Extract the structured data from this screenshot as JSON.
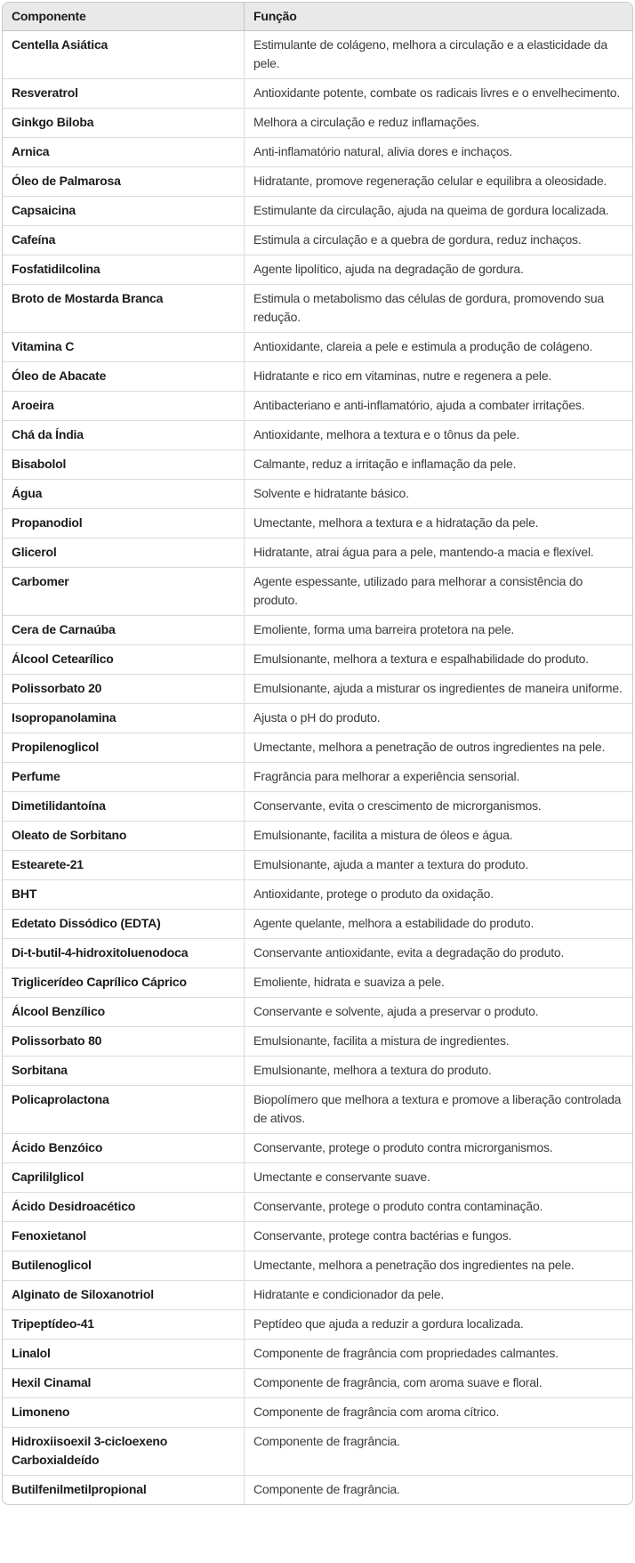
{
  "colors": {
    "header_bg": "#e9e9e9",
    "border_outer": "#c9c9c9",
    "border_header": "#c6c6c6",
    "border_row": "#dbdbdb",
    "text_primary": "#1b1b1b",
    "text_secondary": "#3a3a3a"
  },
  "table": {
    "columns": [
      {
        "label": "Componente"
      },
      {
        "label": "Função"
      }
    ],
    "rows": [
      {
        "componente": "Centella Asiática",
        "funcao": "Estimulante de colágeno, melhora a circulação e a elasticidade da pele."
      },
      {
        "componente": "Resveratrol",
        "funcao": "Antioxidante potente, combate os radicais livres e o envelhecimento."
      },
      {
        "componente": "Ginkgo Biloba",
        "funcao": "Melhora a circulação e reduz inflamações."
      },
      {
        "componente": "Arnica",
        "funcao": "Anti-inflamatório natural, alivia dores e inchaços."
      },
      {
        "componente": "Óleo de Palmarosa",
        "funcao": "Hidratante, promove regeneração celular e equilibra a oleosidade."
      },
      {
        "componente": "Capsaicina",
        "funcao": "Estimulante da circulação, ajuda na queima de gordura localizada."
      },
      {
        "componente": "Cafeína",
        "funcao": "Estimula a circulação e a quebra de gordura, reduz inchaços."
      },
      {
        "componente": "Fosfatidilcolina",
        "funcao": "Agente lipolítico, ajuda na degradação de gordura."
      },
      {
        "componente": "Broto de Mostarda Branca",
        "funcao": "Estimula o metabolismo das células de gordura, promovendo sua redução."
      },
      {
        "componente": "Vitamina C",
        "funcao": "Antioxidante, clareia a pele e estimula a produção de colágeno."
      },
      {
        "componente": "Óleo de Abacate",
        "funcao": "Hidratante e rico em vitaminas, nutre e regenera a pele."
      },
      {
        "componente": "Aroeira",
        "funcao": "Antibacteriano e anti-inflamatório, ajuda a combater irritações."
      },
      {
        "componente": "Chá da Índia",
        "funcao": "Antioxidante, melhora a textura e o tônus da pele."
      },
      {
        "componente": "Bisabolol",
        "funcao": "Calmante, reduz a irritação e inflamação da pele."
      },
      {
        "componente": "Água",
        "funcao": "Solvente e hidratante básico."
      },
      {
        "componente": "Propanodiol",
        "funcao": "Umectante, melhora a textura e a hidratação da pele."
      },
      {
        "componente": "Glicerol",
        "funcao": "Hidratante, atrai água para a pele, mantendo-a macia e flexível."
      },
      {
        "componente": "Carbomer",
        "funcao": "Agente espessante, utilizado para melhorar a consistência do produto."
      },
      {
        "componente": "Cera de Carnaúba",
        "funcao": "Emoliente, forma uma barreira protetora na pele."
      },
      {
        "componente": "Álcool Cetearílico",
        "funcao": "Emulsionante, melhora a textura e espalhabilidade do produto."
      },
      {
        "componente": "Polissorbato 20",
        "funcao": "Emulsionante, ajuda a misturar os ingredientes de maneira uniforme."
      },
      {
        "componente": "Isopropanolamina",
        "funcao": "Ajusta o pH do produto."
      },
      {
        "componente": "Propilenoglicol",
        "funcao": "Umectante, melhora a penetração de outros ingredientes na pele."
      },
      {
        "componente": "Perfume",
        "funcao": "Fragrância para melhorar a experiência sensorial."
      },
      {
        "componente": "Dimetilidantoína",
        "funcao": "Conservante, evita o crescimento de microrganismos."
      },
      {
        "componente": "Oleato de Sorbitano",
        "funcao": "Emulsionante, facilita a mistura de óleos e água."
      },
      {
        "componente": "Estearete-21",
        "funcao": "Emulsionante, ajuda a manter a textura do produto."
      },
      {
        "componente": "BHT",
        "funcao": "Antioxidante, protege o produto da oxidação."
      },
      {
        "componente": "Edetato Dissódico (EDTA)",
        "funcao": "Agente quelante, melhora a estabilidade do produto."
      },
      {
        "componente": "Di-t-butil-4-hidroxitoluenodoca",
        "funcao": "Conservante antioxidante, evita a degradação do produto."
      },
      {
        "componente": "Triglicerídeo Caprílico Cáprico",
        "funcao": "Emoliente, hidrata e suaviza a pele."
      },
      {
        "componente": "Álcool Benzílico",
        "funcao": "Conservante e solvente, ajuda a preservar o produto."
      },
      {
        "componente": "Polissorbato 80",
        "funcao": "Emulsionante, facilita a mistura de ingredientes."
      },
      {
        "componente": "Sorbitana",
        "funcao": "Emulsionante, melhora a textura do produto."
      },
      {
        "componente": "Policaprolactona",
        "funcao": "Biopolímero que melhora a textura e promove a liberação controlada de ativos."
      },
      {
        "componente": "Ácido Benzóico",
        "funcao": "Conservante, protege o produto contra microrganismos."
      },
      {
        "componente": "Caprililglicol",
        "funcao": "Umectante e conservante suave."
      },
      {
        "componente": "Ácido Desidroacético",
        "funcao": "Conservante, protege o produto contra contaminação."
      },
      {
        "componente": "Fenoxietanol",
        "funcao": "Conservante, protege contra bactérias e fungos."
      },
      {
        "componente": "Butilenoglicol",
        "funcao": "Umectante, melhora a penetração dos ingredientes na pele."
      },
      {
        "componente": "Alginato de Siloxanotriol",
        "funcao": "Hidratante e condicionador da pele."
      },
      {
        "componente": "Tripeptídeo-41",
        "funcao": "Peptídeo que ajuda a reduzir a gordura localizada."
      },
      {
        "componente": "Linalol",
        "funcao": "Componente de fragrância com propriedades calmantes."
      },
      {
        "componente": "Hexil Cinamal",
        "funcao": "Componente de fragrância, com aroma suave e floral."
      },
      {
        "componente": "Limoneno",
        "funcao": "Componente de fragrância com aroma cítrico."
      },
      {
        "componente": "Hidroxiisoexil 3-cicloexeno Carboxialdeído",
        "funcao": "Componente de fragrância."
      },
      {
        "componente": "Butilfenilmetilpropional",
        "funcao": "Componente de fragrância."
      }
    ]
  }
}
